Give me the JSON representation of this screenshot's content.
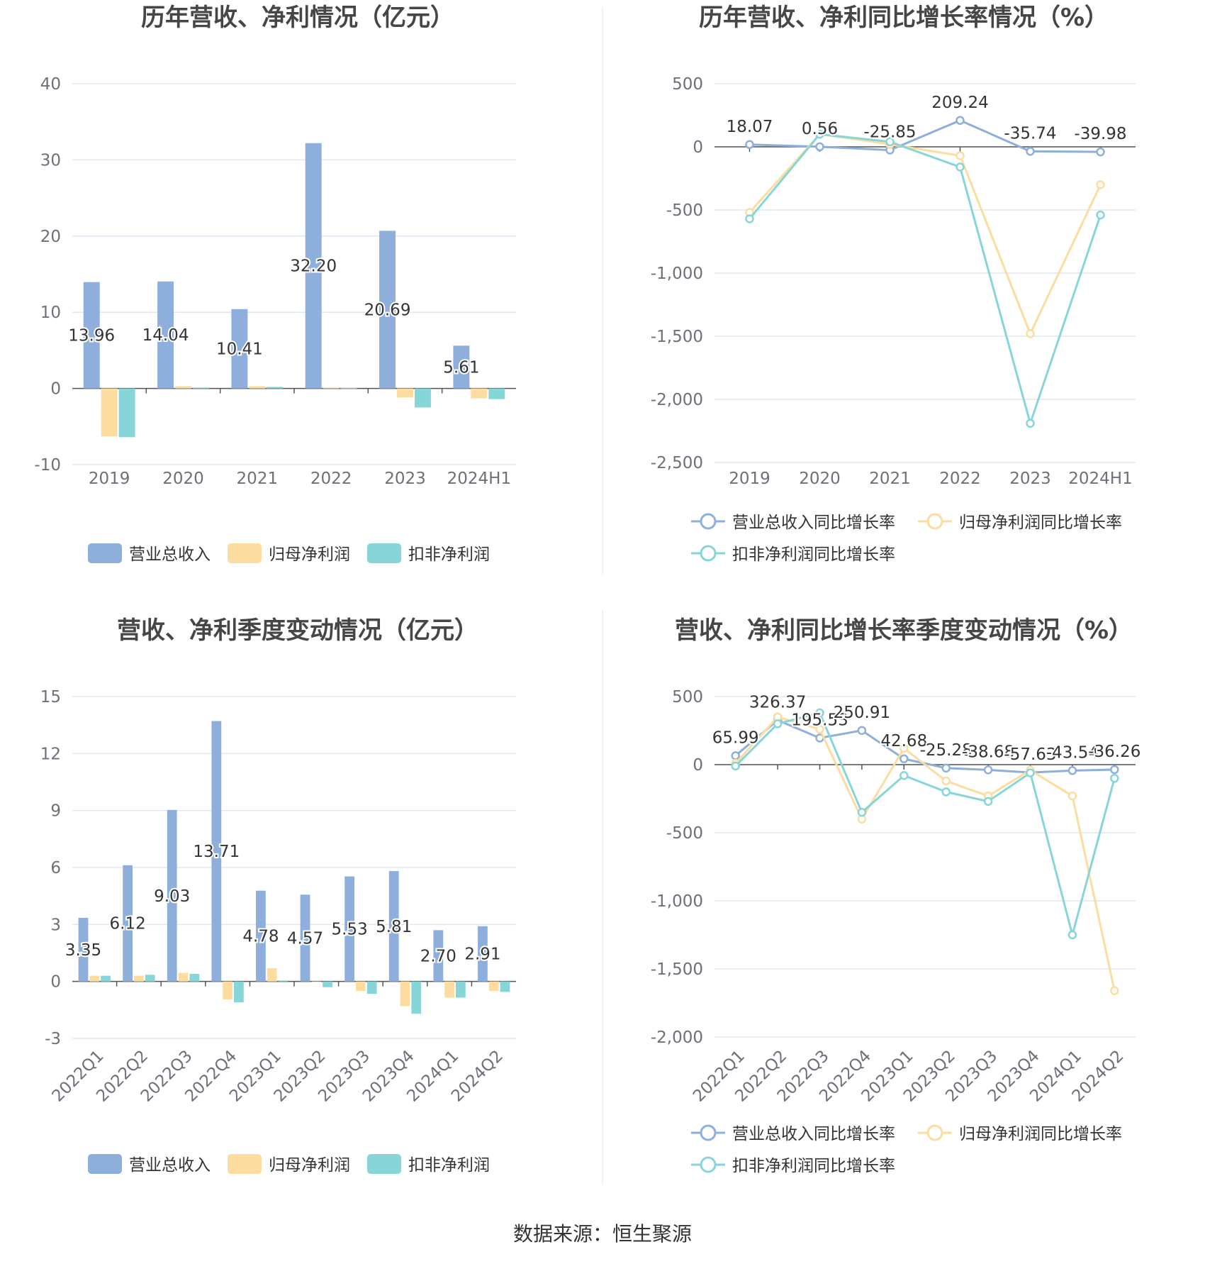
{
  "colors": {
    "revenue": "#8eaedc",
    "net_profit": "#fddc9f",
    "deducted_profit": "#86d6d9",
    "axis_text": "#6e7079",
    "grid": "#e0e6f1",
    "title": "#464646",
    "label": "#333333"
  },
  "footer": {
    "text": "数据来源：恒生聚源"
  },
  "chart_data": [
    {
      "id": "annual-amount",
      "type": "bar",
      "title": "历年营收、净利情况（亿元）",
      "categories": [
        "2019",
        "2020",
        "2021",
        "2022",
        "2023",
        "2024H1"
      ],
      "ylim": [
        -10,
        40
      ],
      "yticks": [
        -10,
        0,
        10,
        20,
        30,
        40
      ],
      "grid": true,
      "legend_position": "bottom",
      "series": [
        {
          "name": "营业总收入",
          "values": [
            13.96,
            14.04,
            10.41,
            32.2,
            20.69,
            5.61
          ],
          "labels": [
            "13.96",
            "14.04",
            "10.41",
            "32.20",
            "20.69",
            "5.61"
          ]
        },
        {
          "name": "归母净利润",
          "values": [
            -6.3,
            0.3,
            0.3,
            0.1,
            -1.2,
            -1.3
          ]
        },
        {
          "name": "扣非净利润",
          "values": [
            -6.4,
            0.1,
            0.2,
            0.05,
            -2.5,
            -1.4
          ]
        }
      ]
    },
    {
      "id": "annual-growth",
      "type": "line",
      "title": "历年营收、净利同比增长率情况（%）",
      "categories": [
        "2019",
        "2020",
        "2021",
        "2022",
        "2023",
        "2024H1"
      ],
      "ylim": [
        -2500,
        500
      ],
      "yticks": [
        -2500,
        -2000,
        -1500,
        -1000,
        -500,
        0,
        500
      ],
      "ytick_labels": [
        "-2,500",
        "-2,000",
        "-1,500",
        "-1,000",
        "-500",
        "0",
        "500"
      ],
      "grid": true,
      "legend_position": "bottom",
      "series": [
        {
          "name": "营业总收入同比增长率",
          "values": [
            18.07,
            0.56,
            -25.85,
            209.24,
            -35.74,
            -39.98
          ],
          "labels": [
            "18.07",
            "0.56",
            "-25.85",
            "209.24",
            "-35.74",
            "-39.98"
          ]
        },
        {
          "name": "归母净利润同比增长率",
          "values": [
            -520,
            100,
            20,
            -70,
            -1480,
            -300
          ]
        },
        {
          "name": "扣非净利润同比增长率",
          "values": [
            -570,
            100,
            40,
            -160,
            -2190,
            -540
          ]
        }
      ]
    },
    {
      "id": "quarterly-amount",
      "type": "bar",
      "title": "营收、净利季度变动情况（亿元）",
      "categories": [
        "2022Q1",
        "2022Q2",
        "2022Q3",
        "2022Q4",
        "2023Q1",
        "2023Q2",
        "2023Q3",
        "2023Q4",
        "2024Q1",
        "2024Q2"
      ],
      "ylim": [
        -3,
        15
      ],
      "yticks": [
        -3,
        0,
        3,
        6,
        9,
        12,
        15
      ],
      "grid": true,
      "legend_position": "bottom",
      "series": [
        {
          "name": "营业总收入",
          "values": [
            3.35,
            6.12,
            9.03,
            13.71,
            4.78,
            4.57,
            5.53,
            5.81,
            2.7,
            2.91
          ],
          "labels": [
            "3.35",
            "6.12",
            "9.03",
            "13.71",
            "4.78",
            "4.57",
            "5.53",
            "5.81",
            "2.70",
            "2.91"
          ]
        },
        {
          "name": "归母净利润",
          "values": [
            0.3,
            0.3,
            0.45,
            -0.95,
            0.7,
            0.0,
            -0.5,
            -1.3,
            -0.85,
            -0.5
          ]
        },
        {
          "name": "扣非净利润",
          "values": [
            0.3,
            0.35,
            0.4,
            -1.1,
            0.05,
            -0.3,
            -0.65,
            -1.7,
            -0.85,
            -0.55
          ]
        }
      ]
    },
    {
      "id": "quarterly-growth",
      "type": "line",
      "title": "营收、净利同比增长率季度变动情况（%）",
      "categories": [
        "2022Q1",
        "2022Q2",
        "2022Q3",
        "2022Q4",
        "2023Q1",
        "2023Q2",
        "2023Q3",
        "2023Q4",
        "2024Q1",
        "2024Q2"
      ],
      "ylim": [
        -2000,
        500
      ],
      "yticks": [
        -2000,
        -1500,
        -1000,
        -500,
        0,
        500
      ],
      "ytick_labels": [
        "-2,000",
        "-1,500",
        "-1,000",
        "-500",
        "0",
        "500"
      ],
      "grid": true,
      "legend_position": "bottom",
      "series": [
        {
          "name": "营业总收入同比增长率",
          "values": [
            65.99,
            326.37,
            195.53,
            250.91,
            42.68,
            -25.28,
            -38.68,
            -57.63,
            -43.54,
            -36.26
          ],
          "labels": [
            "65.99",
            "326.37",
            "195.53",
            "250.91",
            "42.68",
            "-25.28",
            "-38.68",
            "-57.63",
            "-43.54",
            "-36.26"
          ]
        },
        {
          "name": "归母净利润同比增长率",
          "values": [
            10,
            350,
            260,
            -400,
            120,
            -120,
            -230,
            -40,
            -230,
            -1660
          ]
        },
        {
          "name": "扣非净利润同比增长率",
          "values": [
            -10,
            300,
            380,
            -350,
            -80,
            -200,
            -270,
            -60,
            -1250,
            -100
          ]
        }
      ]
    }
  ]
}
